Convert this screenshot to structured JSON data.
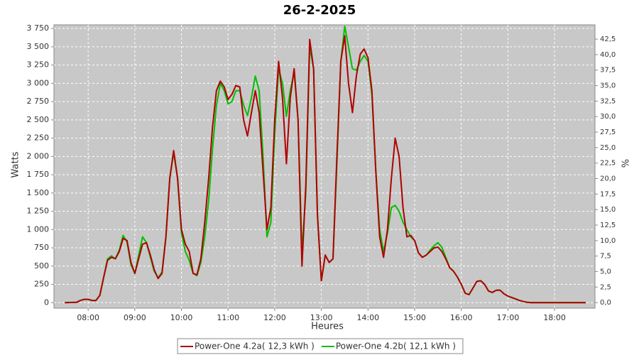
{
  "chart_data": {
    "type": "line",
    "title": "26-2-2025",
    "xlabel": "Heures",
    "ylabel": "Watts",
    "y2label": "%",
    "x": [
      "07:30",
      "07:45",
      "07:50",
      "07:55",
      "08:00",
      "08:05",
      "08:10",
      "08:15",
      "08:20",
      "08:25",
      "08:30",
      "08:35",
      "08:40",
      "08:45",
      "08:50",
      "08:55",
      "09:00",
      "09:05",
      "09:10",
      "09:15",
      "09:20",
      "09:25",
      "09:30",
      "09:35",
      "09:40",
      "09:45",
      "09:50",
      "09:55",
      "10:00",
      "10:05",
      "10:10",
      "10:15",
      "10:20",
      "10:25",
      "10:30",
      "10:35",
      "10:40",
      "10:45",
      "10:50",
      "10:55",
      "11:00",
      "11:05",
      "11:10",
      "11:15",
      "11:20",
      "11:25",
      "11:30",
      "11:35",
      "11:40",
      "11:45",
      "11:50",
      "11:55",
      "12:00",
      "12:05",
      "12:10",
      "12:15",
      "12:20",
      "12:25",
      "12:30",
      "12:35",
      "12:40",
      "12:45",
      "12:50",
      "12:55",
      "13:00",
      "13:05",
      "13:10",
      "13:15",
      "13:20",
      "13:25",
      "13:30",
      "13:35",
      "13:40",
      "13:45",
      "13:50",
      "13:55",
      "14:00",
      "14:05",
      "14:10",
      "14:15",
      "14:20",
      "14:25",
      "14:30",
      "14:35",
      "14:40",
      "14:45",
      "14:50",
      "14:55",
      "15:00",
      "15:05",
      "15:10",
      "15:15",
      "15:20",
      "15:25",
      "15:30",
      "15:35",
      "15:40",
      "15:45",
      "15:50",
      "15:55",
      "16:00",
      "16:05",
      "16:10",
      "16:15",
      "16:20",
      "16:25",
      "16:30",
      "16:35",
      "16:40",
      "16:45",
      "16:50",
      "16:55",
      "17:00",
      "17:05",
      "17:10",
      "17:15",
      "17:20",
      "17:25",
      "17:30",
      "18:40"
    ],
    "series": [
      {
        "name": "Power-One 4.2a( 12,3 kWh )",
        "color": "#b00000",
        "values": [
          0,
          5,
          30,
          45,
          45,
          30,
          30,
          100,
          350,
          580,
          620,
          600,
          700,
          880,
          850,
          550,
          400,
          600,
          800,
          820,
          650,
          450,
          330,
          400,
          900,
          1700,
          2080,
          1700,
          1000,
          800,
          700,
          400,
          380,
          600,
          1100,
          1700,
          2400,
          2900,
          3030,
          2950,
          2780,
          2850,
          2970,
          2950,
          2500,
          2280,
          2600,
          2900,
          2600,
          1800,
          1000,
          1300,
          2500,
          3300,
          2800,
          1900,
          2800,
          3200,
          2500,
          500,
          1600,
          3600,
          3200,
          1200,
          300,
          650,
          550,
          600,
          2000,
          3300,
          3650,
          3000,
          2600,
          3100,
          3400,
          3470,
          3350,
          2900,
          1800,
          900,
          620,
          1000,
          1700,
          2250,
          2000,
          1300,
          900,
          920,
          850,
          680,
          620,
          650,
          700,
          750,
          760,
          700,
          600,
          480,
          430,
          350,
          250,
          130,
          110,
          200,
          290,
          300,
          250,
          160,
          140,
          170,
          170,
          120,
          90,
          70,
          50,
          30,
          15,
          5,
          0,
          0
        ]
      },
      {
        "name": "Power-One 4.2b( 12,1 kWh )",
        "color": "#00c000",
        "values": [
          0,
          5,
          30,
          45,
          45,
          30,
          30,
          100,
          350,
          600,
          640,
          600,
          720,
          920,
          830,
          520,
          400,
          650,
          900,
          820,
          620,
          430,
          340,
          420,
          900,
          1700,
          2050,
          1700,
          950,
          700,
          580,
          400,
          370,
          550,
          900,
          1400,
          2100,
          2700,
          3000,
          2900,
          2720,
          2750,
          2900,
          2900,
          2700,
          2560,
          2800,
          3100,
          2900,
          2000,
          900,
          1100,
          2300,
          3200,
          3000,
          2550,
          2900,
          3150,
          2500,
          700,
          1500,
          3500,
          3200,
          1200,
          300,
          650,
          550,
          600,
          1900,
          3300,
          3780,
          3500,
          3200,
          3180,
          3300,
          3380,
          3300,
          2850,
          1800,
          1000,
          700,
          950,
          1300,
          1330,
          1250,
          1100,
          1000,
          900,
          850,
          680,
          620,
          650,
          720,
          780,
          820,
          760,
          620,
          480,
          430,
          350,
          250,
          130,
          110,
          200,
          290,
          300,
          250,
          160,
          140,
          170,
          170,
          120,
          90,
          70,
          50,
          30,
          15,
          5,
          0,
          0
        ]
      }
    ],
    "xlim": [
      "07:16",
      "18:52"
    ],
    "xticks": [
      "08:00",
      "09:00",
      "10:00",
      "11:00",
      "12:00",
      "13:00",
      "14:00",
      "15:00",
      "16:00",
      "17:00",
      "18:00"
    ],
    "ylim": [
      -75,
      3800
    ],
    "yticks": [
      0,
      250,
      500,
      750,
      {
        "value": 1000,
        "label": "1 000"
      },
      {
        "value": 1250,
        "label": "1 250"
      },
      {
        "value": 1500,
        "label": "1 500"
      },
      {
        "value": 1750,
        "label": "1 750"
      },
      {
        "value": 2000,
        "label": "2 000"
      },
      {
        "value": 2250,
        "label": "2 250"
      },
      {
        "value": 2500,
        "label": "2 500"
      },
      {
        "value": 2750,
        "label": "2 750"
      },
      {
        "value": 3000,
        "label": "3 000"
      },
      {
        "value": 3250,
        "label": "3 250"
      },
      {
        "value": 3500,
        "label": "3 500"
      },
      {
        "value": 3750,
        "label": "3 750"
      }
    ],
    "y2lim": [
      -0.9,
      44.8
    ],
    "y2ticks": [
      {
        "value": 0,
        "label": "0,0"
      },
      {
        "value": 2.5,
        "label": "2,5"
      },
      {
        "value": 5,
        "label": "5,0"
      },
      {
        "value": 7.5,
        "label": "7,5"
      },
      {
        "value": 10,
        "label": "10,0"
      },
      {
        "value": 12.5,
        "label": "12,5"
      },
      {
        "value": 15,
        "label": "15,0"
      },
      {
        "value": 17.5,
        "label": "17,5"
      },
      {
        "value": 20,
        "label": "20,0"
      },
      {
        "value": 22.5,
        "label": "22,5"
      },
      {
        "value": 25,
        "label": "25,0"
      },
      {
        "value": 27.5,
        "label": "27,5"
      },
      {
        "value": 30,
        "label": "30,0"
      },
      {
        "value": 32.5,
        "label": "32,5"
      },
      {
        "value": 35,
        "label": "35,0"
      },
      {
        "value": 37.5,
        "label": "37,5"
      },
      {
        "value": 40,
        "label": "40,0"
      },
      {
        "value": 42.5,
        "label": "42,5"
      }
    ],
    "grid": true,
    "legend": "bottom"
  }
}
